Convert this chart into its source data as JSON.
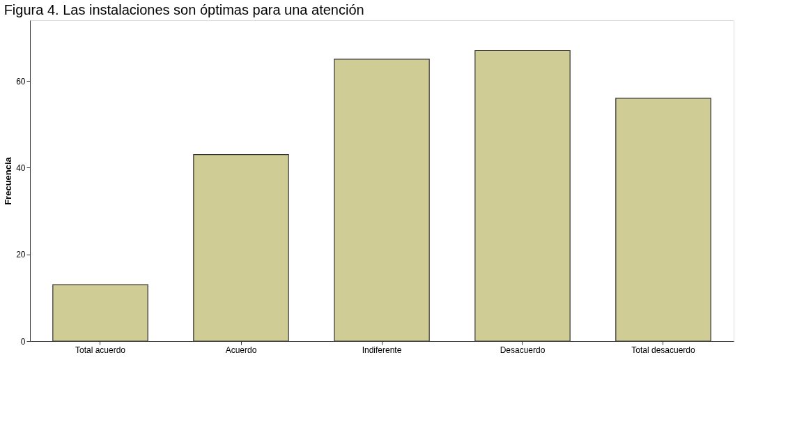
{
  "chart_data": {
    "type": "bar",
    "title": "Figura 4. Las instalaciones son óptimas para una atención",
    "ylabel": "Frecuencia",
    "categories": [
      "Total acuerdo",
      "Acuerdo",
      "Indiferente",
      "Desacuerdo",
      "Total desacuerdo"
    ],
    "values": [
      13,
      43,
      65,
      67,
      56
    ],
    "color": "#d0cc96",
    "ylim": [
      0,
      74
    ],
    "yticks": [
      0,
      20,
      40,
      60
    ],
    "grid": false
  }
}
